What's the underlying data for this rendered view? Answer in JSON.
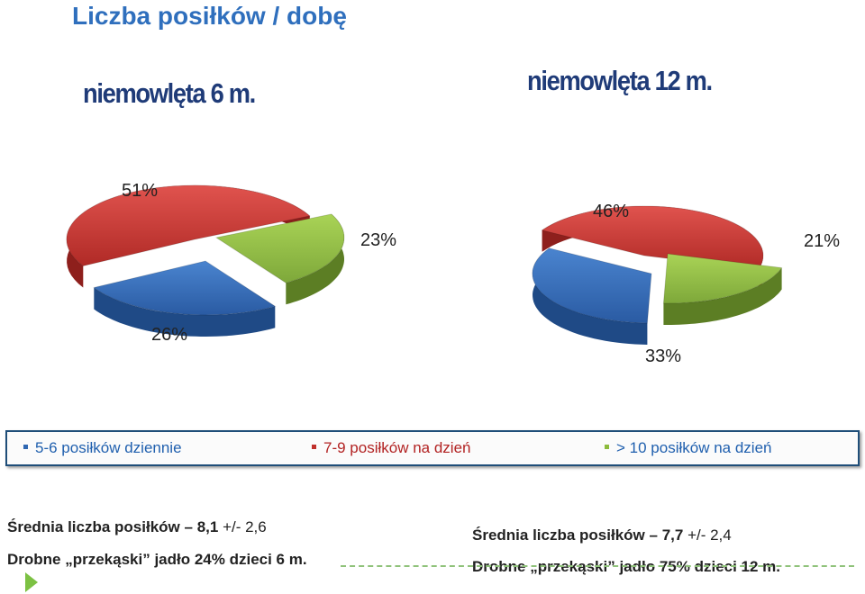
{
  "page_title": "Liczba posiłków / dobę",
  "colors": {
    "red": "#c0302c",
    "blue": "#2f67b2",
    "green": "#8cbb3c",
    "title": "#2f6fbd"
  },
  "chart_data": [
    {
      "type": "pie",
      "title": "niemowlęta 6 m.",
      "categories": [
        "5-6 posiłków dziennie",
        "7-9 posiłków na dzień",
        "> 10 posiłków na dzień"
      ],
      "values": [
        26,
        51,
        23
      ],
      "labels": [
        "26%",
        "51%",
        "23%"
      ]
    },
    {
      "type": "pie",
      "title": "niemowlęta 12 m.",
      "categories": [
        "5-6 posiłków dziennie",
        "7-9 posiłków na dzień",
        "> 10 posiłków na dzień"
      ],
      "values": [
        33,
        46,
        21
      ],
      "labels": [
        "33%",
        "46%",
        "21%"
      ]
    }
  ],
  "legend": {
    "items": [
      "5-6 posiłków dziennie",
      "7-9 posiłków na dzień",
      "> 10 posiłków na dzień"
    ],
    "placement": "bottom"
  },
  "footer": {
    "left": {
      "mean_label": "Średnia liczba posiłków",
      "mean_value": "– 8,1",
      "mean_sd": "+/- 2,6",
      "snacks": "Drobne „przekąski” jadło 24% dzieci 6 m."
    },
    "right": {
      "mean_label": "Średnia liczba posiłków",
      "mean_value": "– 7,7",
      "mean_sd": "+/- 2,4",
      "snacks": "Drobne „przekąski” jadło  75% dzieci 12 m."
    }
  }
}
